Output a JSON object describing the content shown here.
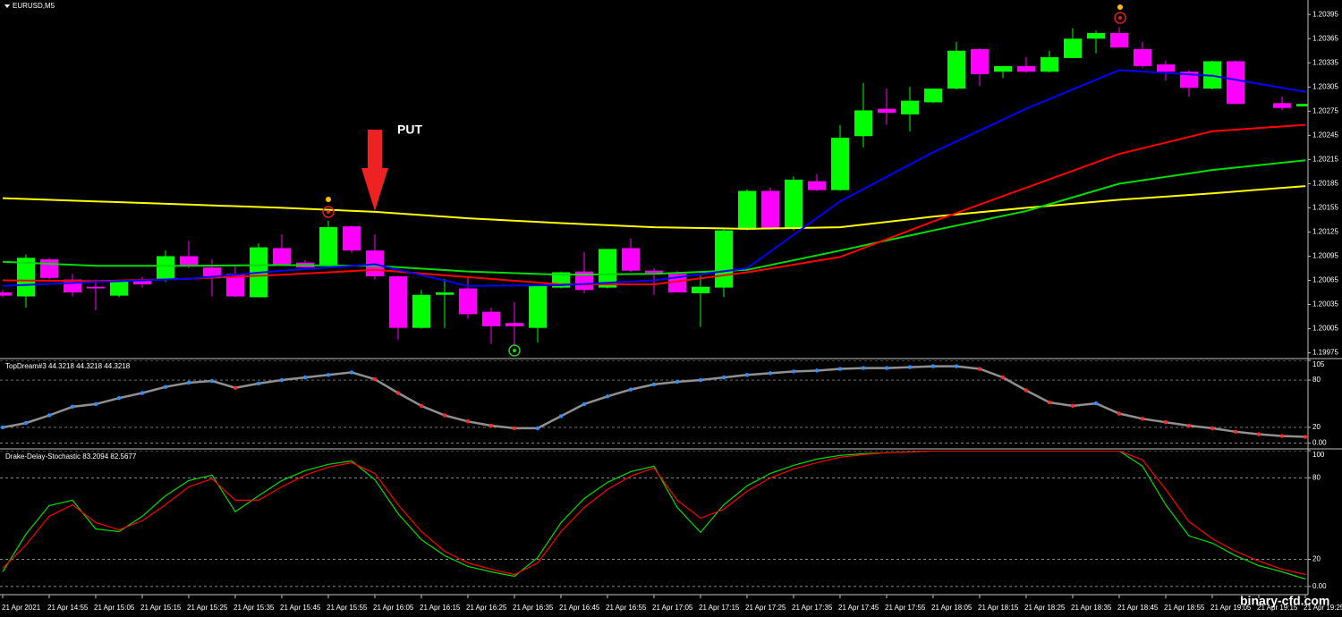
{
  "chart_data": [
    {
      "type": "candlestick",
      "title": "EURUSD,M5",
      "ylim": [
        1.19969,
        1.20413
      ],
      "yticks": [
        1.20395,
        1.20365,
        1.20335,
        1.20305,
        1.20275,
        1.20245,
        1.20215,
        1.20185,
        1.20155,
        1.20125,
        1.20095,
        1.20065,
        1.20035,
        1.20005,
        1.19975
      ],
      "grid": false,
      "up_color": "#00ff00",
      "down_color": "#ff00ff",
      "open": [
        1.2005,
        1.20045,
        1.20091,
        1.20066,
        1.20057,
        1.20046,
        1.20066,
        1.20067,
        1.20095,
        1.20081,
        1.20073,
        1.20044,
        1.20105,
        1.20087,
        1.20084,
        1.20132,
        1.20102,
        1.2007,
        1.20006,
        1.20047,
        1.20055,
        1.20026,
        1.20012,
        1.20006,
        1.20056,
        1.20076,
        1.20056,
        1.20105,
        1.20077,
        1.20073,
        1.20049,
        1.20056,
        1.20128,
        1.20176,
        1.20129,
        1.20188,
        1.20177,
        1.20244,
        1.20278,
        1.20271,
        1.20286,
        1.20303,
        1.20352,
        1.20324,
        1.20331,
        1.20324,
        1.20341,
        1.20365,
        1.20372,
        1.20352,
        1.20333,
        1.20324,
        1.20303,
        1.20337,
        null,
        1.20285,
        1.20281
      ],
      "high": [
        1.20053,
        1.20097,
        1.20093,
        1.20073,
        1.20066,
        1.20066,
        1.20069,
        1.20102,
        1.20114,
        1.20091,
        1.20085,
        1.20111,
        1.20122,
        1.2009,
        1.20139,
        1.20133,
        1.20122,
        1.20071,
        1.20053,
        1.20067,
        1.20069,
        1.20031,
        1.20038,
        1.2006,
        1.20076,
        1.201,
        1.20104,
        1.20117,
        1.2008,
        1.20077,
        1.20071,
        1.20128,
        1.20178,
        1.2018,
        1.20194,
        1.20197,
        1.20258,
        1.2031,
        1.20303,
        1.20305,
        1.20303,
        1.20361,
        1.20353,
        1.20331,
        1.20342,
        1.2035,
        1.20378,
        1.20375,
        1.20379,
        1.20361,
        1.20338,
        1.20326,
        1.20338,
        1.20338,
        null,
        1.20293,
        1.20284
      ],
      "low": [
        1.20044,
        1.20031,
        1.20066,
        1.20045,
        1.20028,
        1.20044,
        1.20056,
        1.20063,
        1.2008,
        1.20045,
        1.20044,
        1.20044,
        1.20085,
        1.2008,
        1.20083,
        1.20099,
        1.20066,
        1.19991,
        1.20005,
        1.20006,
        1.20017,
        1.19986,
        1.19983,
        1.19988,
        1.20055,
        1.20049,
        1.20055,
        1.20075,
        1.20047,
        1.2005,
        1.20007,
        1.20044,
        1.20127,
        1.20128,
        1.20127,
        1.20176,
        1.20176,
        1.2023,
        1.20258,
        1.2025,
        1.20285,
        1.20302,
        1.20306,
        1.20316,
        1.20323,
        1.20323,
        1.20341,
        1.20347,
        1.20354,
        1.20329,
        1.20313,
        1.20293,
        1.20302,
        1.20284,
        null,
        1.20276,
        1.20281
      ],
      "close": [
        1.20046,
        1.20093,
        1.20068,
        1.2005,
        1.20055,
        1.20064,
        1.2006,
        1.20095,
        1.20084,
        1.2007,
        1.20045,
        1.20106,
        1.20085,
        1.20081,
        1.20131,
        1.20102,
        1.2007,
        1.20006,
        1.20047,
        1.2005,
        1.20023,
        1.20008,
        1.20008,
        1.20058,
        1.20075,
        1.20053,
        1.20104,
        1.20077,
        1.20074,
        1.2005,
        1.20057,
        1.20127,
        1.20176,
        1.20129,
        1.2019,
        1.20177,
        1.20242,
        1.20276,
        1.20273,
        1.20288,
        1.20303,
        1.2035,
        1.20321,
        1.20331,
        1.20324,
        1.20342,
        1.20365,
        1.20372,
        1.20354,
        1.20331,
        1.20324,
        1.20304,
        1.20337,
        1.20284,
        null,
        1.20279,
        1.20284
      ],
      "lines": [
        {
          "color": "#ffff00",
          "x": [
            0,
            4,
            8,
            12,
            16,
            20,
            24,
            28,
            32,
            36,
            40,
            44,
            48,
            52,
            56
          ],
          "values": [
            1.20167,
            1.20163,
            1.20159,
            1.20155,
            1.2015,
            1.20142,
            1.20136,
            1.20131,
            1.20129,
            1.20131,
            1.20144,
            1.20155,
            1.20165,
            1.20173,
            1.20182
          ]
        },
        {
          "color": "#00dd00",
          "x": [
            0,
            4,
            8,
            12,
            16,
            20,
            24,
            28,
            32,
            36,
            40,
            44,
            48,
            52,
            56
          ],
          "values": [
            1.20088,
            1.20083,
            1.20083,
            1.20084,
            1.20083,
            1.20076,
            1.20072,
            1.20073,
            1.20078,
            1.20102,
            1.20127,
            1.20151,
            1.20185,
            1.20202,
            1.20214
          ]
        },
        {
          "color": "#ff0000",
          "x": [
            0,
            4,
            8,
            12,
            16,
            20,
            24,
            28,
            32,
            36,
            40,
            44,
            48,
            52,
            56
          ],
          "values": [
            1.20065,
            1.20064,
            1.20067,
            1.20072,
            1.20078,
            1.20069,
            1.2006,
            1.2006,
            1.20075,
            1.20094,
            1.20138,
            1.2018,
            1.20222,
            1.2025,
            1.20258
          ]
        },
        {
          "color": "#0000ff",
          "x": [
            0,
            4,
            8,
            12,
            16,
            20,
            24,
            28,
            32,
            36,
            40,
            44,
            48,
            52,
            56
          ],
          "values": [
            1.20058,
            1.20063,
            1.20067,
            1.20077,
            1.20085,
            1.20058,
            1.20059,
            1.20065,
            1.2008,
            1.20163,
            1.20224,
            1.20278,
            1.20326,
            1.20319,
            1.20299
          ]
        }
      ],
      "annotation": "PUT"
    },
    {
      "type": "line",
      "title": "TopDream#3 44.3218 44.3218 44.3218",
      "ylim": [
        -5,
        105
      ],
      "yticks": [
        105,
        80,
        20,
        {
          "value": 0,
          "label": "0.00"
        }
      ],
      "grid": true,
      "dots": true,
      "up_color": "#2f8fff",
      "down_color": "#ff2a2a",
      "series": [
        {
          "color": "#909090",
          "values": [
            20,
            25.5,
            35.3,
            46.2,
            49.5,
            57.1,
            63.6,
            71.3,
            76.7,
            78.9,
            70.2,
            75.6,
            80,
            83.3,
            86.5,
            89.8,
            81.1,
            63.6,
            47.3,
            35.3,
            27.6,
            22.2,
            18.9,
            18.9,
            34.2,
            49.5,
            59.3,
            68,
            74.5,
            77.8,
            80,
            83.3,
            86.5,
            88.7,
            90.9,
            92,
            94.2,
            95.3,
            95.3,
            96.4,
            97.5,
            97.5,
            94.2,
            83.3,
            66.9,
            51.6,
            47.3,
            50.5,
            37.5,
            30.9,
            26.5,
            22.2,
            18.9,
            14.5,
            11.3,
            9.1,
            8
          ]
        }
      ]
    },
    {
      "type": "line",
      "title": "Drake-Delay-Stochastic 83.2094 82.5677",
      "ylim": [
        -6,
        100
      ],
      "yticks": [
        100,
        80,
        20,
        {
          "value": 0,
          "label": "0.00"
        }
      ],
      "grid": true,
      "dots": false,
      "series": [
        {
          "color": "#00dd00",
          "values": [
            10.8,
            38.5,
            59.6,
            63.5,
            42.4,
            40.4,
            51.7,
            66.8,
            78,
            82,
            55,
            66.8,
            78,
            85.3,
            89.9,
            92.5,
            78.7,
            53.6,
            34.5,
            22.7,
            14.8,
            10.8,
            7.5,
            21.3,
            47,
            64.8,
            76.7,
            84.6,
            88.6,
            58.2,
            39.8,
            60.2,
            74.1,
            83.3,
            89.2,
            93.8,
            96.5,
            97.8,
            98.5,
            99.1,
            99.8,
            99.8,
            99.8,
            99.8,
            99.8,
            99.8,
            99.8,
            99.8,
            99.8,
            88.6,
            60.2,
            37.2,
            31.9,
            22.7,
            15.4,
            10.8,
            5.5
          ]
        },
        {
          "color": "#ff0000",
          "values": [
            13.4,
            30.6,
            51.7,
            60.2,
            47,
            41.8,
            48.4,
            60.2,
            73.4,
            79.3,
            63.5,
            63.5,
            73.4,
            82,
            87.9,
            91.2,
            83.3,
            60.2,
            40.4,
            25.9,
            17.4,
            12.7,
            8.8,
            17.4,
            40.4,
            58.2,
            71.4,
            81.3,
            87.3,
            63.5,
            50.3,
            56.9,
            70.1,
            80,
            86.6,
            91.2,
            95.2,
            97.1,
            98.5,
            99.1,
            99.8,
            99.8,
            99.8,
            99.8,
            99.8,
            99.8,
            99.8,
            99.8,
            99.8,
            93.2,
            71.4,
            47.7,
            35.2,
            25.9,
            18.7,
            12.7,
            8.8
          ]
        }
      ]
    }
  ],
  "time_axis": {
    "labels": [
      "21 Apr 2021",
      "21 Apr 14:55",
      "21 Apr 15:05",
      "21 Apr 15:15",
      "21 Apr 15:25",
      "21 Apr 15:35",
      "21 Apr 15:45",
      "21 Apr 15:55",
      "21 Apr 16:05",
      "21 Apr 16:15",
      "21 Apr 16:25",
      "21 Apr 16:35",
      "21 Apr 16:45",
      "21 Apr 16:55",
      "21 Apr 17:05",
      "21 Apr 17:15",
      "21 Apr 17:25",
      "21 Apr 17:35",
      "21 Apr 17:45",
      "21 Apr 17:55",
      "21 Apr 18:05",
      "21 Apr 18:15",
      "21 Apr 18:25",
      "21 Apr 18:35",
      "21 Apr 18:45",
      "21 Apr 18:55",
      "21 Apr 19:05",
      "21 Apr 19:15",
      "21 Apr 19:25"
    ]
  },
  "watermark": "binary-cfd.com"
}
